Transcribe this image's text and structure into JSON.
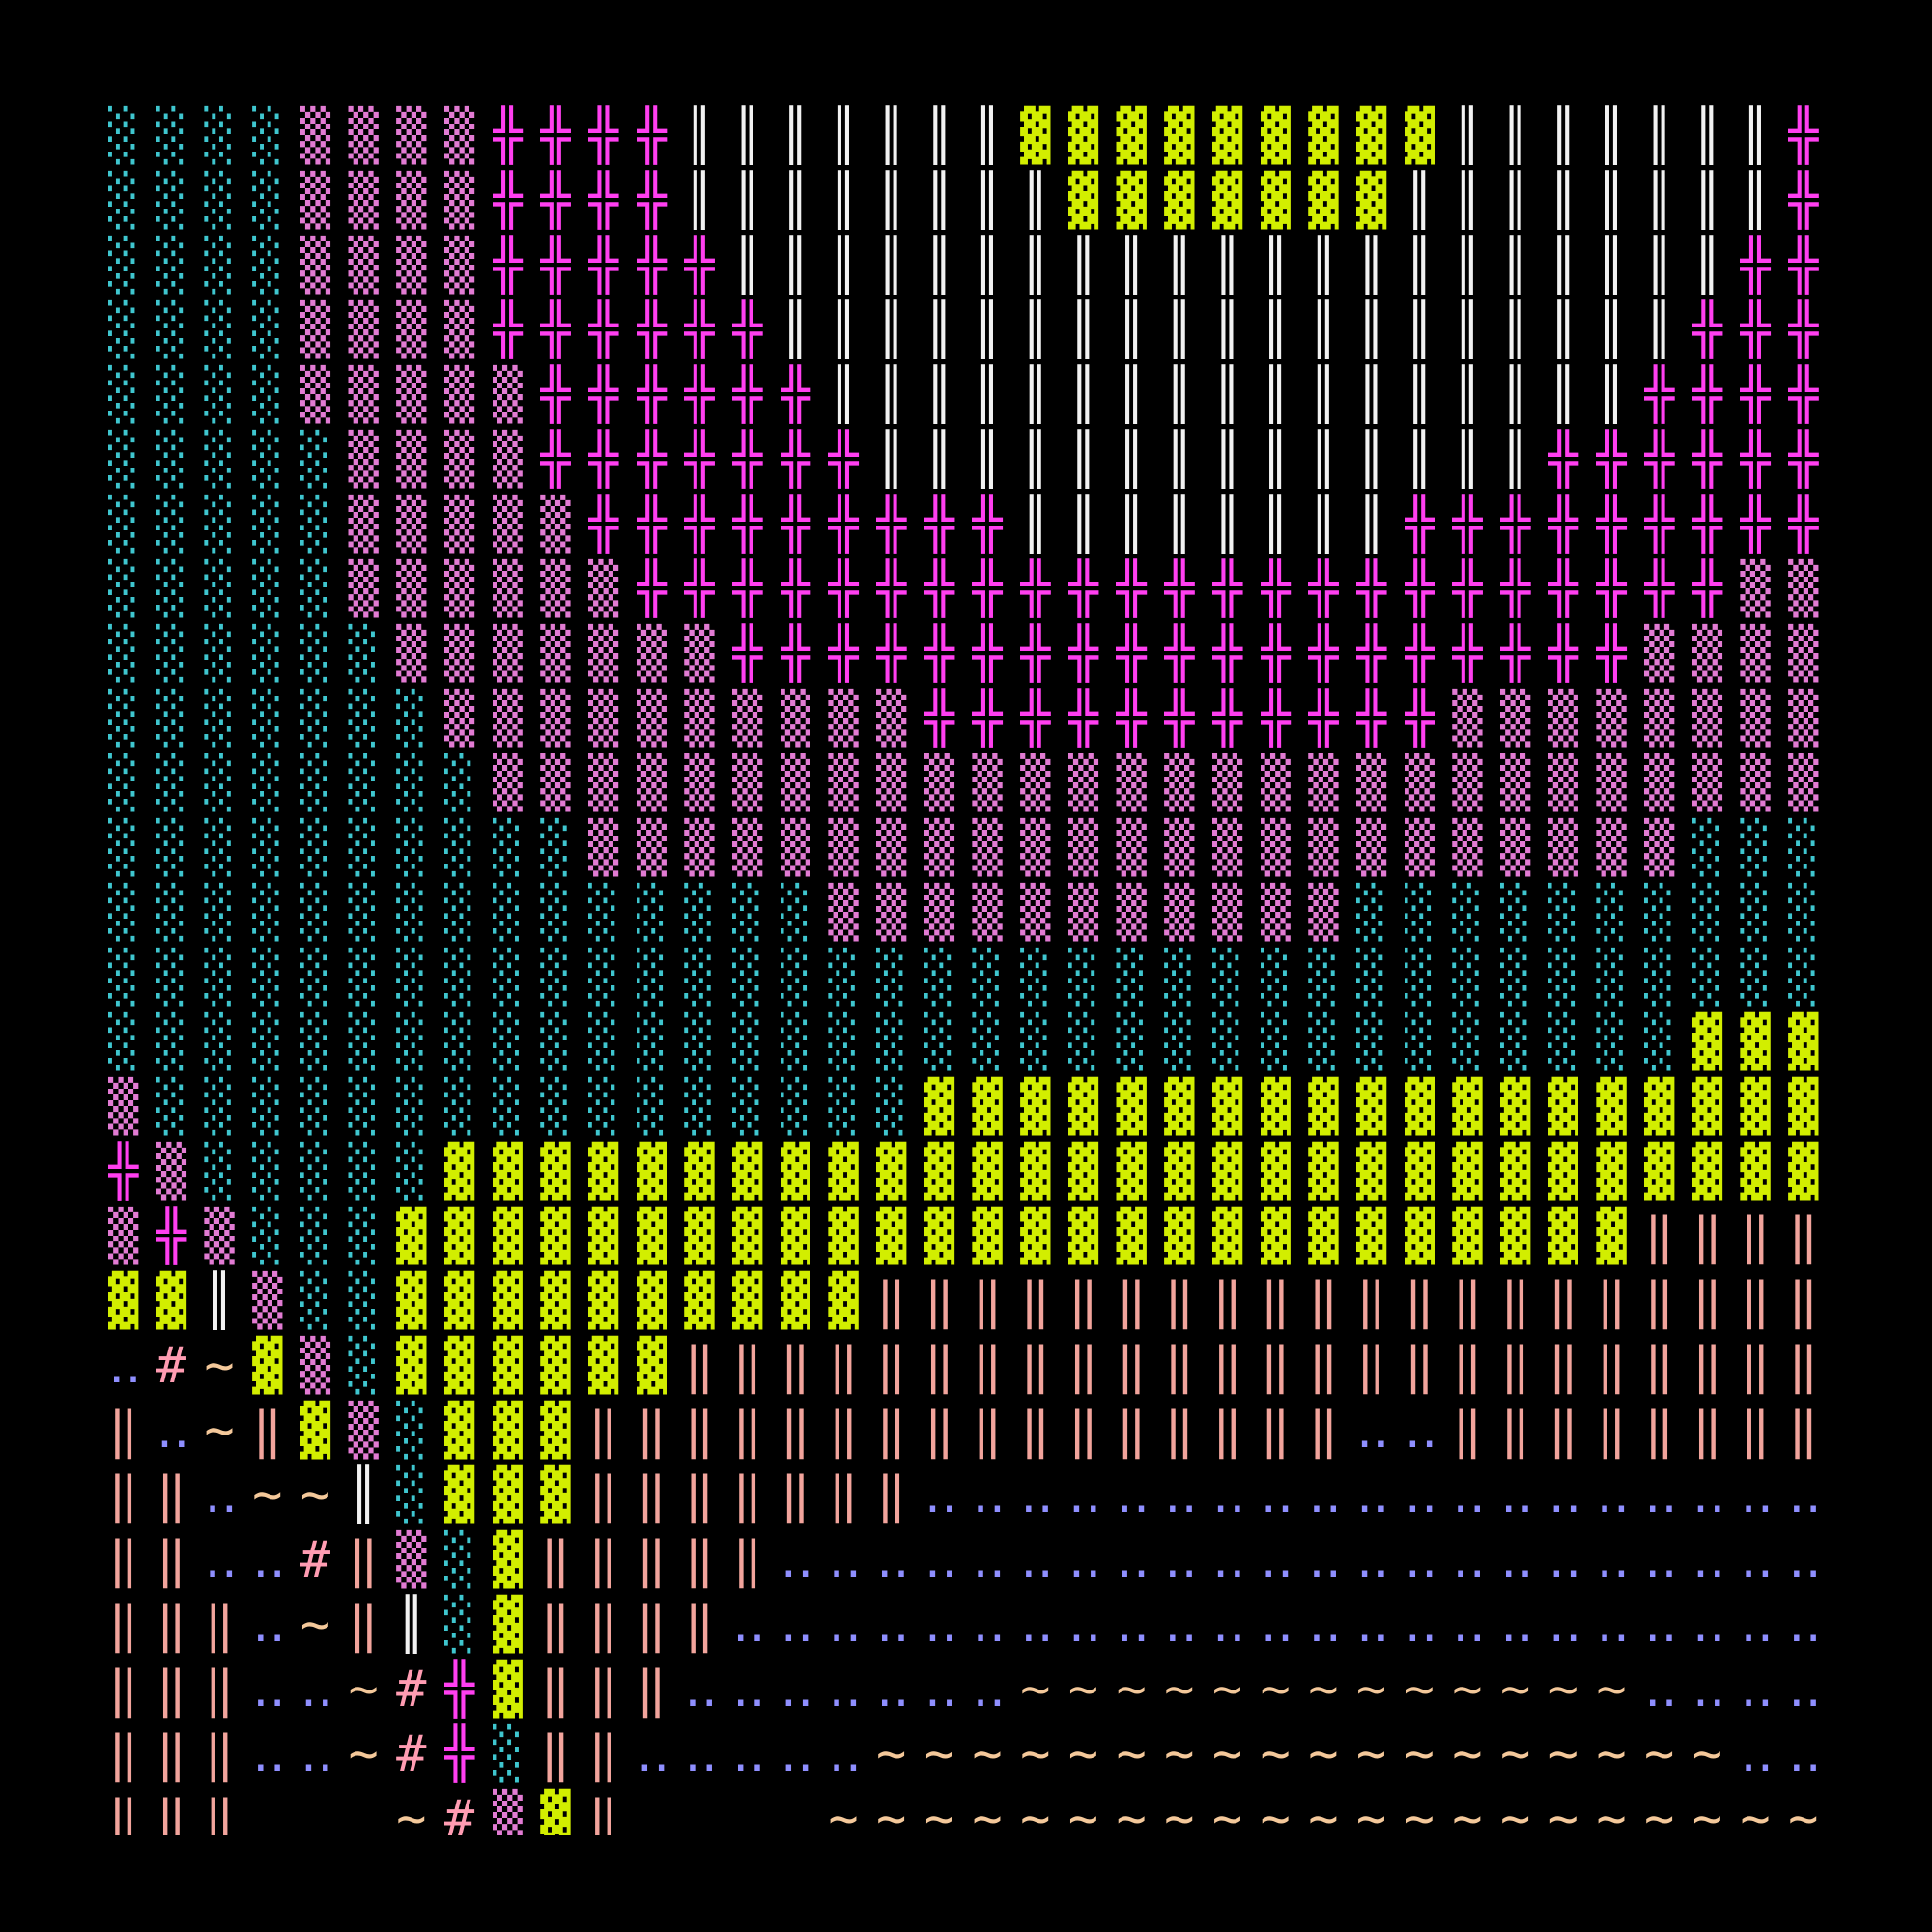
{
  "screen": {
    "palette": {
      "░": "#3fc6cf",
      "▒": "#e27bd3",
      "▓": "#d2ee00",
      "╬": "#ff3ff0",
      "║": "#f2f2f2",
      "‖": "#f2a49c",
      "‥": "#8f8fff",
      "#": "#ff9cb2",
      "~": "#f4c89a"
    },
    "rows": [
      "░░░░▒▒▒▒╬╬╬╬║║║║║║║▓▓▓▓▓▓▓▓▓║║║║║║║╬",
      "░░░░▒▒▒▒╬╬╬╬║║║║║║║║▓▓▓▓▓▓▓║║║║║║║║╬",
      "░░░░▒▒▒▒╬╬╬╬╬║║║║║║║║║║║║║║║║║║║║║╬╬",
      "░░░░▒▒▒▒╬╬╬╬╬╬║║║║║║║║║║║║║║║║║║║╬╬╬",
      "░░░░▒▒▒▒▒╬╬╬╬╬╬║║║║║║║║║║║║║║║║║╬╬╬╬",
      "░░░░░▒▒▒▒╬╬╬╬╬╬╬║║║║║║║║║║║║║║╬╬╬╬╬╬",
      "░░░░░▒▒▒▒▒╬╬╬╬╬╬╬╬╬║║║║║║║║╬╬╬╬╬╬╬╬╬",
      "░░░░░▒▒▒▒▒▒╬╬╬╬╬╬╬╬╬╬╬╬╬╬╬╬╬╬╬╬╬╬╬▒▒",
      "░░░░░░▒▒▒▒▒▒▒╬╬╬╬╬╬╬╬╬╬╬╬╬╬╬╬╬╬╬▒▒▒▒",
      "░░░░░░░▒▒▒▒▒▒▒▒▒▒╬╬╬╬╬╬╬╬╬╬╬▒▒▒▒▒▒▒▒",
      "░░░░░░░░▒▒▒▒▒▒▒▒▒▒▒▒▒▒▒▒▒▒▒▒▒▒▒▒▒▒▒▒",
      "░░░░░░░░░░▒▒▒▒▒▒▒▒▒▒▒▒▒▒▒▒▒▒▒▒▒▒▒░░░",
      "░░░░░░░░░░░░░░░▒▒▒▒▒▒▒▒▒▒▒░░░░░░░░░░",
      "░░░░░░░░░░░░░░░░░░░░░░░░░░░░░░░░░░░░",
      "░░░░░░░░░░░░░░░░░░░░░░░░░░░░░░░░░▓▓▓",
      "▒░░░░░░░░░░░░░░░░▓▓▓▓▓▓▓▓▓▓▓▓▓▓▓▓▓▓▓",
      "╬▒░░░░░▓▓▓▓▓▓▓▓▓▓▓▓▓▓▓▓▓▓▓▓▓▓▓▓▓▓▓▓▓",
      "▒╬▒░░░▓▓▓▓▓▓▓▓▓▓▓▓▓▓▓▓▓▓▓▓▓▓▓▓▓▓‖‖‖‖",
      "▓▓║▒░░▓▓▓▓▓▓▓▓▓▓‖‖‖‖‖‖‖‖‖‖‖‖‖‖‖‖‖‖‖‖",
      "‥#~▓▒░▓▓▓▓▓▓‖‖‖‖‖‖‖‖‖‖‖‖‖‖‖‖‖‖‖‖‖‖‖‖",
      "‖‥~‖▓▒░▓▓▓‖‖‖‖‖‖‖‖‖‖‖‖‖‖‖‖‥‥‖‖‖‖‖‖‖‖",
      "‖‖‥~~║░▓▓▓‖‖‖‖‖‖‖‥‥‥‥‥‥‥‥‥‥‥‥‥‥‥‥‥‥‥",
      "‖‖‥‥#‖▒░▓‖‖‖‖‖‥‥‥‥‥‥‥‥‥‥‥‥‥‥‥‥‥‥‥‥‥‥",
      "‖‖‖‥~‖║░▓‖‖‖‖‥‥‥‥‥‥‥‥‥‥‥‥‥‥‥‥‥‥‥‥‥‥‥",
      "‖‖‖‥‥~#╬▓‖‖‖‥‥‥‥‥‥‥~~~~~~~~~~~~~‥‥‥‥",
      "‖‖‖‥‥~#╬░‖‖‥‥‥‥‥~~~~~~~~~~~~~~~~~~‥‥",
      "‖‖‖   ~#▒▓‖    ~~~~~~~~~~~~~~~~~~~~~"
    ]
  }
}
